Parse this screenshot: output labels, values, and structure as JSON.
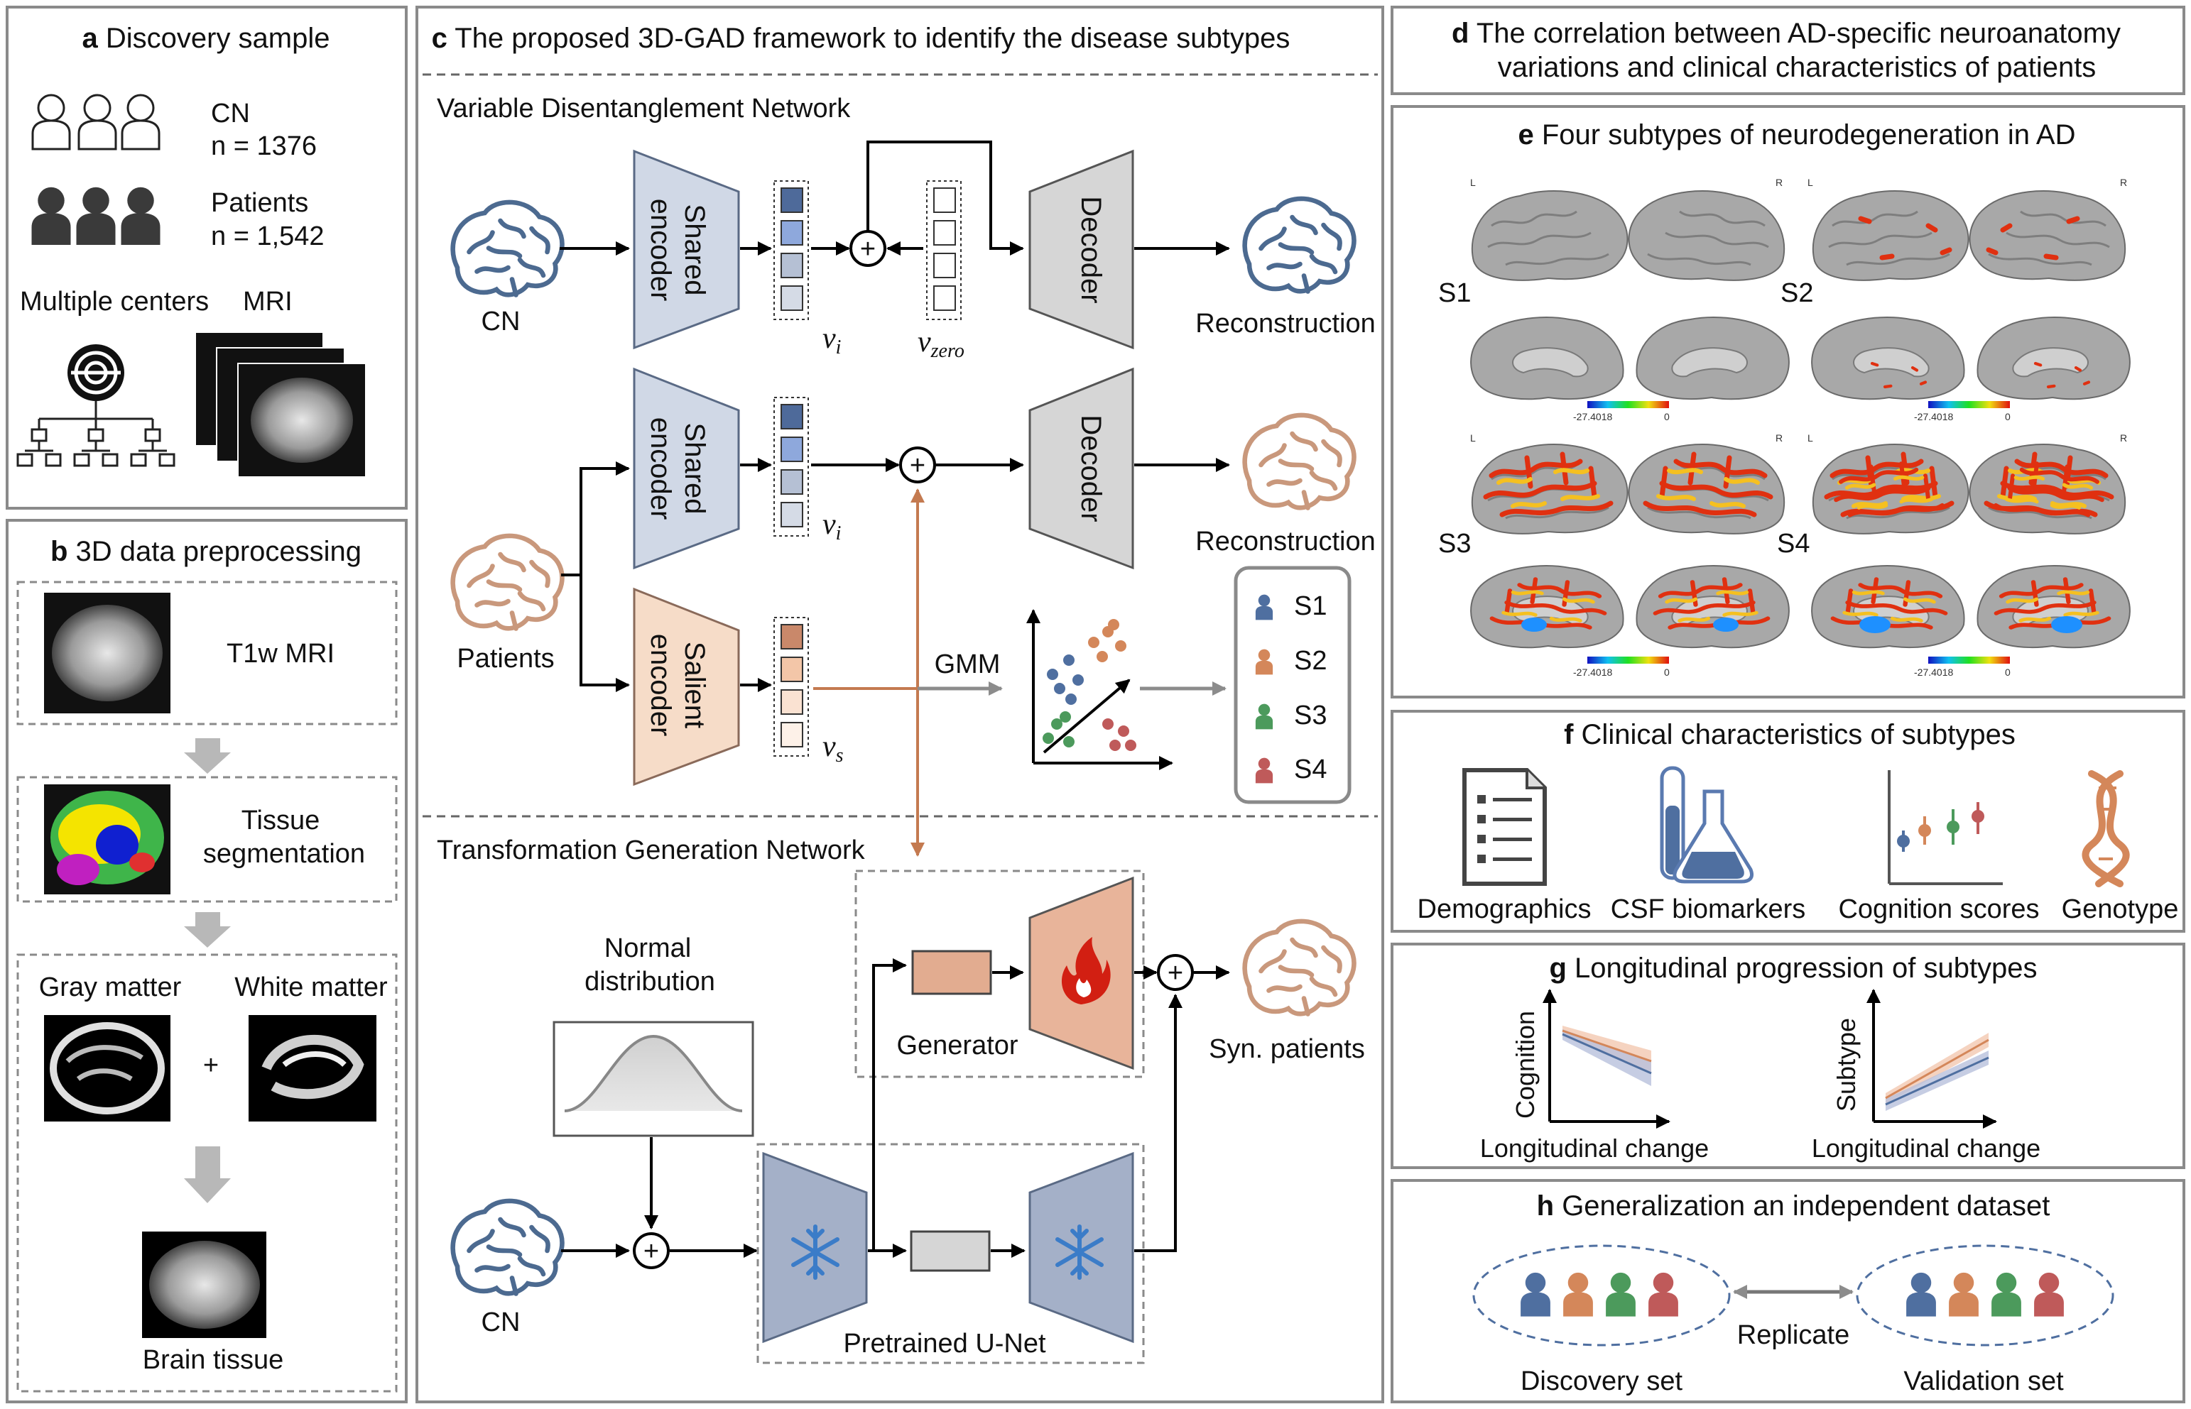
{
  "panel_a": {
    "letter": "a",
    "title": "Discovery sample",
    "cn_label": "CN",
    "cn_n": "n = 1376",
    "patients_label": "Patients",
    "patients_n": "n = 1,542",
    "centers_label": "Multiple centers",
    "mri_label": "MRI"
  },
  "panel_b": {
    "letter": "b",
    "title": "3D data preprocessing",
    "t1w": "T1w MRI",
    "tissue_seg_1": "Tissue",
    "tissue_seg_2": "segmentation",
    "gray": "Gray matter",
    "white": "White matter",
    "plus": "+",
    "brain_tissue": "Brain tissue"
  },
  "panel_c": {
    "letter": "c",
    "title": "The proposed 3D-GAD framework to identify the disease subtypes",
    "vdn_title": "Variable Disentanglement Network",
    "tgn_title": "Transformation Generation Network",
    "shared_encoder_1": "Shared",
    "shared_encoder_2": "encoder",
    "salient_encoder_1": "Salient",
    "salient_encoder_2": "encoder",
    "decoder": "Decoder",
    "cn": "CN",
    "patients": "Patients",
    "reconstruction": "Reconstruction",
    "v_i": "v",
    "v_i_sub": "i",
    "v_zero": "v",
    "v_zero_sub": "zero",
    "v_s": "v",
    "v_s_sub": "s",
    "gmm": "GMM",
    "subtypes": [
      "S1",
      "S2",
      "S3",
      "S4"
    ],
    "normal_dist_1": "Normal",
    "normal_dist_2": "distribution",
    "generator": "Generator",
    "syn_patients": "Syn. patients",
    "pretrained_unet": "Pretrained U-Net",
    "plus": "+"
  },
  "panel_d": {
    "letter": "d",
    "title_1": "The correlation between AD-specific neuroanatomy",
    "title_2": "variations and clinical characteristics of patients"
  },
  "panel_e": {
    "letter": "e",
    "title": "Four subtypes of neurodegeneration in AD",
    "subtypes": [
      "S1",
      "S2",
      "S3",
      "S4"
    ],
    "left": "L",
    "right": "R",
    "scale_min": "-27.4018",
    "scale_max": "0"
  },
  "panel_f": {
    "letter": "f",
    "title": "Clinical characteristics of subtypes",
    "items": [
      "Demographics",
      "CSF biomarkers",
      "Cognition scores",
      "Genotype"
    ]
  },
  "panel_g": {
    "letter": "g",
    "title": "Longitudinal progression of subtypes",
    "plot1_ylabel": "Cognition",
    "plot2_ylabel": "Subtype",
    "xlabel": "Longitudinal change"
  },
  "panel_h": {
    "letter": "h",
    "title": "Generalization an independent dataset",
    "replicate": "Replicate",
    "discovery": "Discovery set",
    "validation": "Validation set"
  },
  "colors": {
    "subtype_s1": "#4f6fa0",
    "subtype_s2": "#d4875a",
    "subtype_s3": "#4c9a5c",
    "subtype_s4": "#bf5a5a",
    "brain_cn": "#4c6a90",
    "brain_patient": "#c9987c"
  }
}
